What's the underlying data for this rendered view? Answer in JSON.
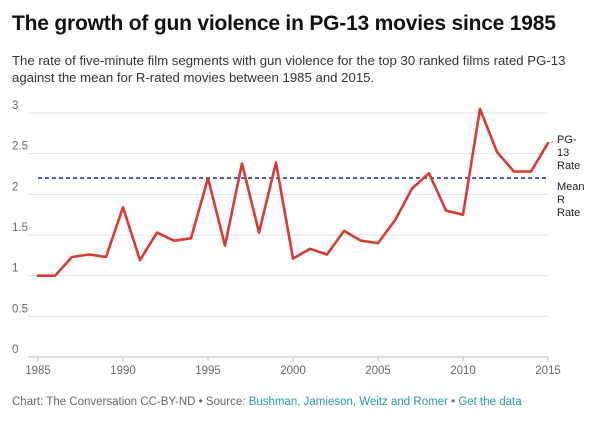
{
  "header": {
    "title": "The growth of gun violence in PG-13 movies since 1985",
    "subtitle": "The rate of five-minute film segments with gun violence for the top 30 ranked films rated PG-13 against the mean for R-rated movies between 1985 and 2015."
  },
  "footer": {
    "prefix": "Chart: The Conversation CC-BY-ND • Source: ",
    "source_link": "Bushman, Jamieson, Weitz and Romer",
    "separator": " • ",
    "data_link": "Get the data"
  },
  "colors": {
    "series": "#d93a32",
    "reference": "#2b3a8f",
    "grid": "#e3e3e3",
    "axis": "#bbbbbb",
    "link": "#2a93a8"
  },
  "chart_data": {
    "type": "line",
    "title": "The growth of gun violence in PG-13 movies since 1985",
    "xlabel": "",
    "ylabel": "",
    "xlim": [
      1985,
      2015
    ],
    "ylim": [
      0,
      3
    ],
    "xticks": [
      "1985",
      "1990",
      "1995",
      "2000",
      "2005",
      "2010",
      "2015"
    ],
    "yticks": [
      "0",
      "0.5",
      "1",
      "1.5",
      "2",
      "2.5",
      "3"
    ],
    "grid": true,
    "series": [
      {
        "name": "PG-13 Rate",
        "label_lines": [
          "PG-",
          "13",
          "Rate"
        ],
        "x": [
          1985,
          1986,
          1987,
          1988,
          1989,
          1990,
          1991,
          1992,
          1993,
          1994,
          1995,
          1996,
          1997,
          1998,
          1999,
          2000,
          2001,
          2002,
          2003,
          2004,
          2005,
          2006,
          2007,
          2008,
          2009,
          2010,
          2011,
          2012,
          2013,
          2014,
          2015
        ],
        "values": [
          1.0,
          1.0,
          1.23,
          1.26,
          1.23,
          1.84,
          1.19,
          1.53,
          1.43,
          1.46,
          2.2,
          1.37,
          2.38,
          1.53,
          2.39,
          1.21,
          1.33,
          1.26,
          1.55,
          1.43,
          1.4,
          1.68,
          2.07,
          2.26,
          1.8,
          1.75,
          3.05,
          2.52,
          2.28,
          2.28,
          2.63
        ]
      }
    ],
    "reference_lines": [
      {
        "name": "Mean R Rate",
        "label_lines": [
          "Mean",
          "R",
          "Rate"
        ],
        "value": 2.2
      }
    ]
  }
}
